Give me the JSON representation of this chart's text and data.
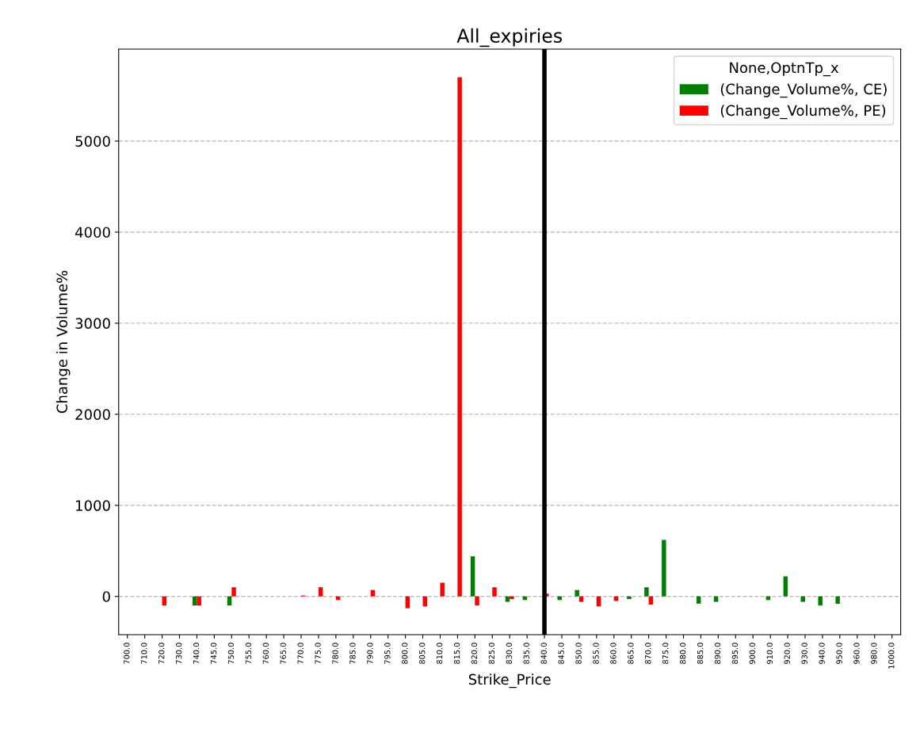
{
  "chart_data": {
    "type": "bar",
    "title": "All_expiries",
    "xlabel": "Strike_Price",
    "ylabel": "Change in Volume%",
    "legend_title": "None,OptnTp_x",
    "categories": [
      "700.0",
      "710.0",
      "720.0",
      "730.0",
      "740.0",
      "745.0",
      "750.0",
      "755.0",
      "760.0",
      "765.0",
      "770.0",
      "775.0",
      "780.0",
      "785.0",
      "790.0",
      "795.0",
      "800.0",
      "805.0",
      "810.0",
      "815.0",
      "820.0",
      "825.0",
      "830.0",
      "835.0",
      "840.0",
      "845.0",
      "850.0",
      "855.0",
      "860.0",
      "865.0",
      "870.0",
      "875.0",
      "880.0",
      "885.0",
      "890.0",
      "895.0",
      "900.0",
      "910.0",
      "920.0",
      "930.0",
      "940.0",
      "950.0",
      "960.0",
      "980.0",
      "1000.0"
    ],
    "series": [
      {
        "name": "(Change_Volume%, CE)",
        "color": "#008000",
        "values": [
          null,
          null,
          null,
          null,
          -100,
          null,
          -100,
          null,
          null,
          null,
          null,
          null,
          null,
          null,
          null,
          null,
          null,
          null,
          null,
          null,
          440,
          null,
          -60,
          -40,
          null,
          -40,
          70,
          null,
          null,
          -30,
          100,
          620,
          null,
          -80,
          -60,
          null,
          null,
          -40,
          220,
          -60,
          -100,
          -80,
          null,
          null,
          null
        ]
      },
      {
        "name": "(Change_Volume%, PE)",
        "color": "#ff0000",
        "values": [
          null,
          null,
          -100,
          null,
          -100,
          null,
          100,
          null,
          null,
          null,
          10,
          100,
          -40,
          null,
          70,
          null,
          -130,
          -110,
          150,
          5700,
          -100,
          100,
          -30,
          null,
          30,
          null,
          -60,
          -110,
          -50,
          null,
          -90,
          null,
          null,
          null,
          null,
          null,
          null,
          null,
          null,
          null,
          null,
          null,
          null,
          null,
          null
        ]
      }
    ],
    "ylim": [
      -420,
      6010
    ],
    "yticks": [
      0,
      1000,
      2000,
      3000,
      4000,
      5000
    ],
    "grid": "y",
    "legend": "top right",
    "ref_lines": [
      {
        "axis": "x",
        "value": "840.0",
        "color": "#000000"
      }
    ]
  }
}
